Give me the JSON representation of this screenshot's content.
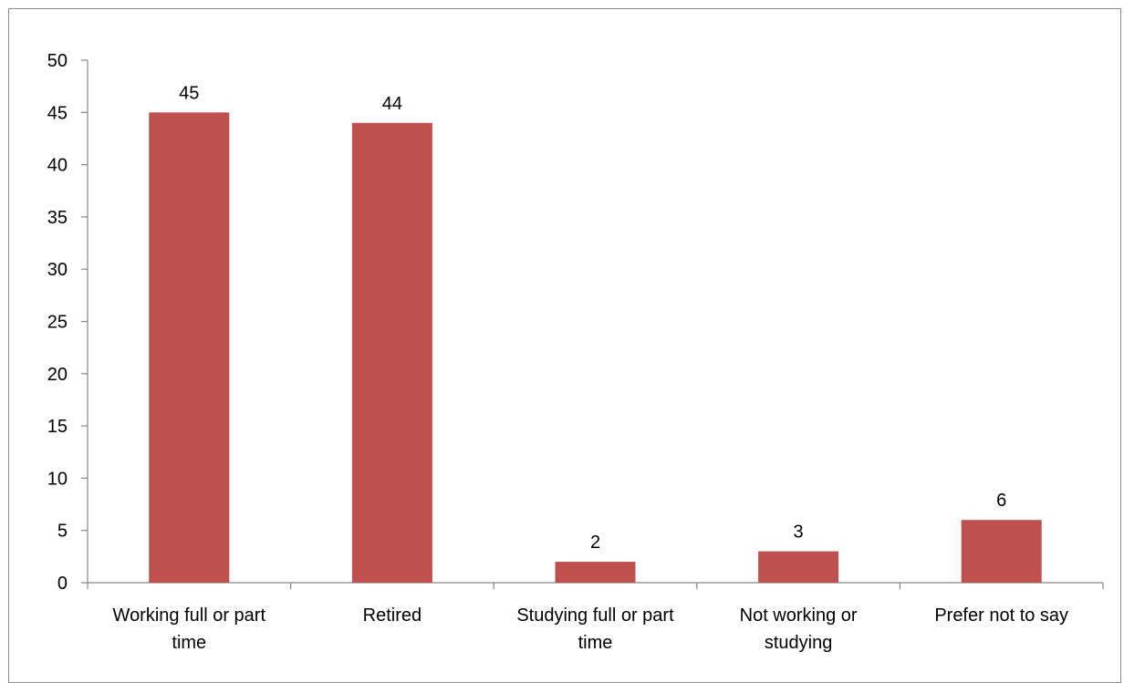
{
  "chart_data": {
    "type": "bar",
    "categories": [
      [
        "Working full or part",
        "time"
      ],
      [
        "Retired"
      ],
      [
        "Studying full or part",
        "time"
      ],
      [
        "Not working or",
        "studying"
      ],
      [
        "Prefer not to say"
      ]
    ],
    "values": [
      45,
      44,
      2,
      3,
      6
    ],
    "data_labels": [
      "45",
      "44",
      "2",
      "3",
      "6"
    ],
    "ylim": [
      0,
      50
    ],
    "yticks": [
      0,
      5,
      10,
      15,
      20,
      25,
      30,
      35,
      40,
      45,
      50
    ],
    "ytick_labels": [
      "0",
      "5",
      "10",
      "15",
      "20",
      "25",
      "30",
      "35",
      "40",
      "45",
      "50"
    ],
    "title": "",
    "xlabel": "",
    "ylabel": "",
    "grid": false,
    "legend": "none",
    "colors": {
      "bar": "#c0504d",
      "axis": "#868686",
      "frame": "#8c8c8c"
    }
  }
}
